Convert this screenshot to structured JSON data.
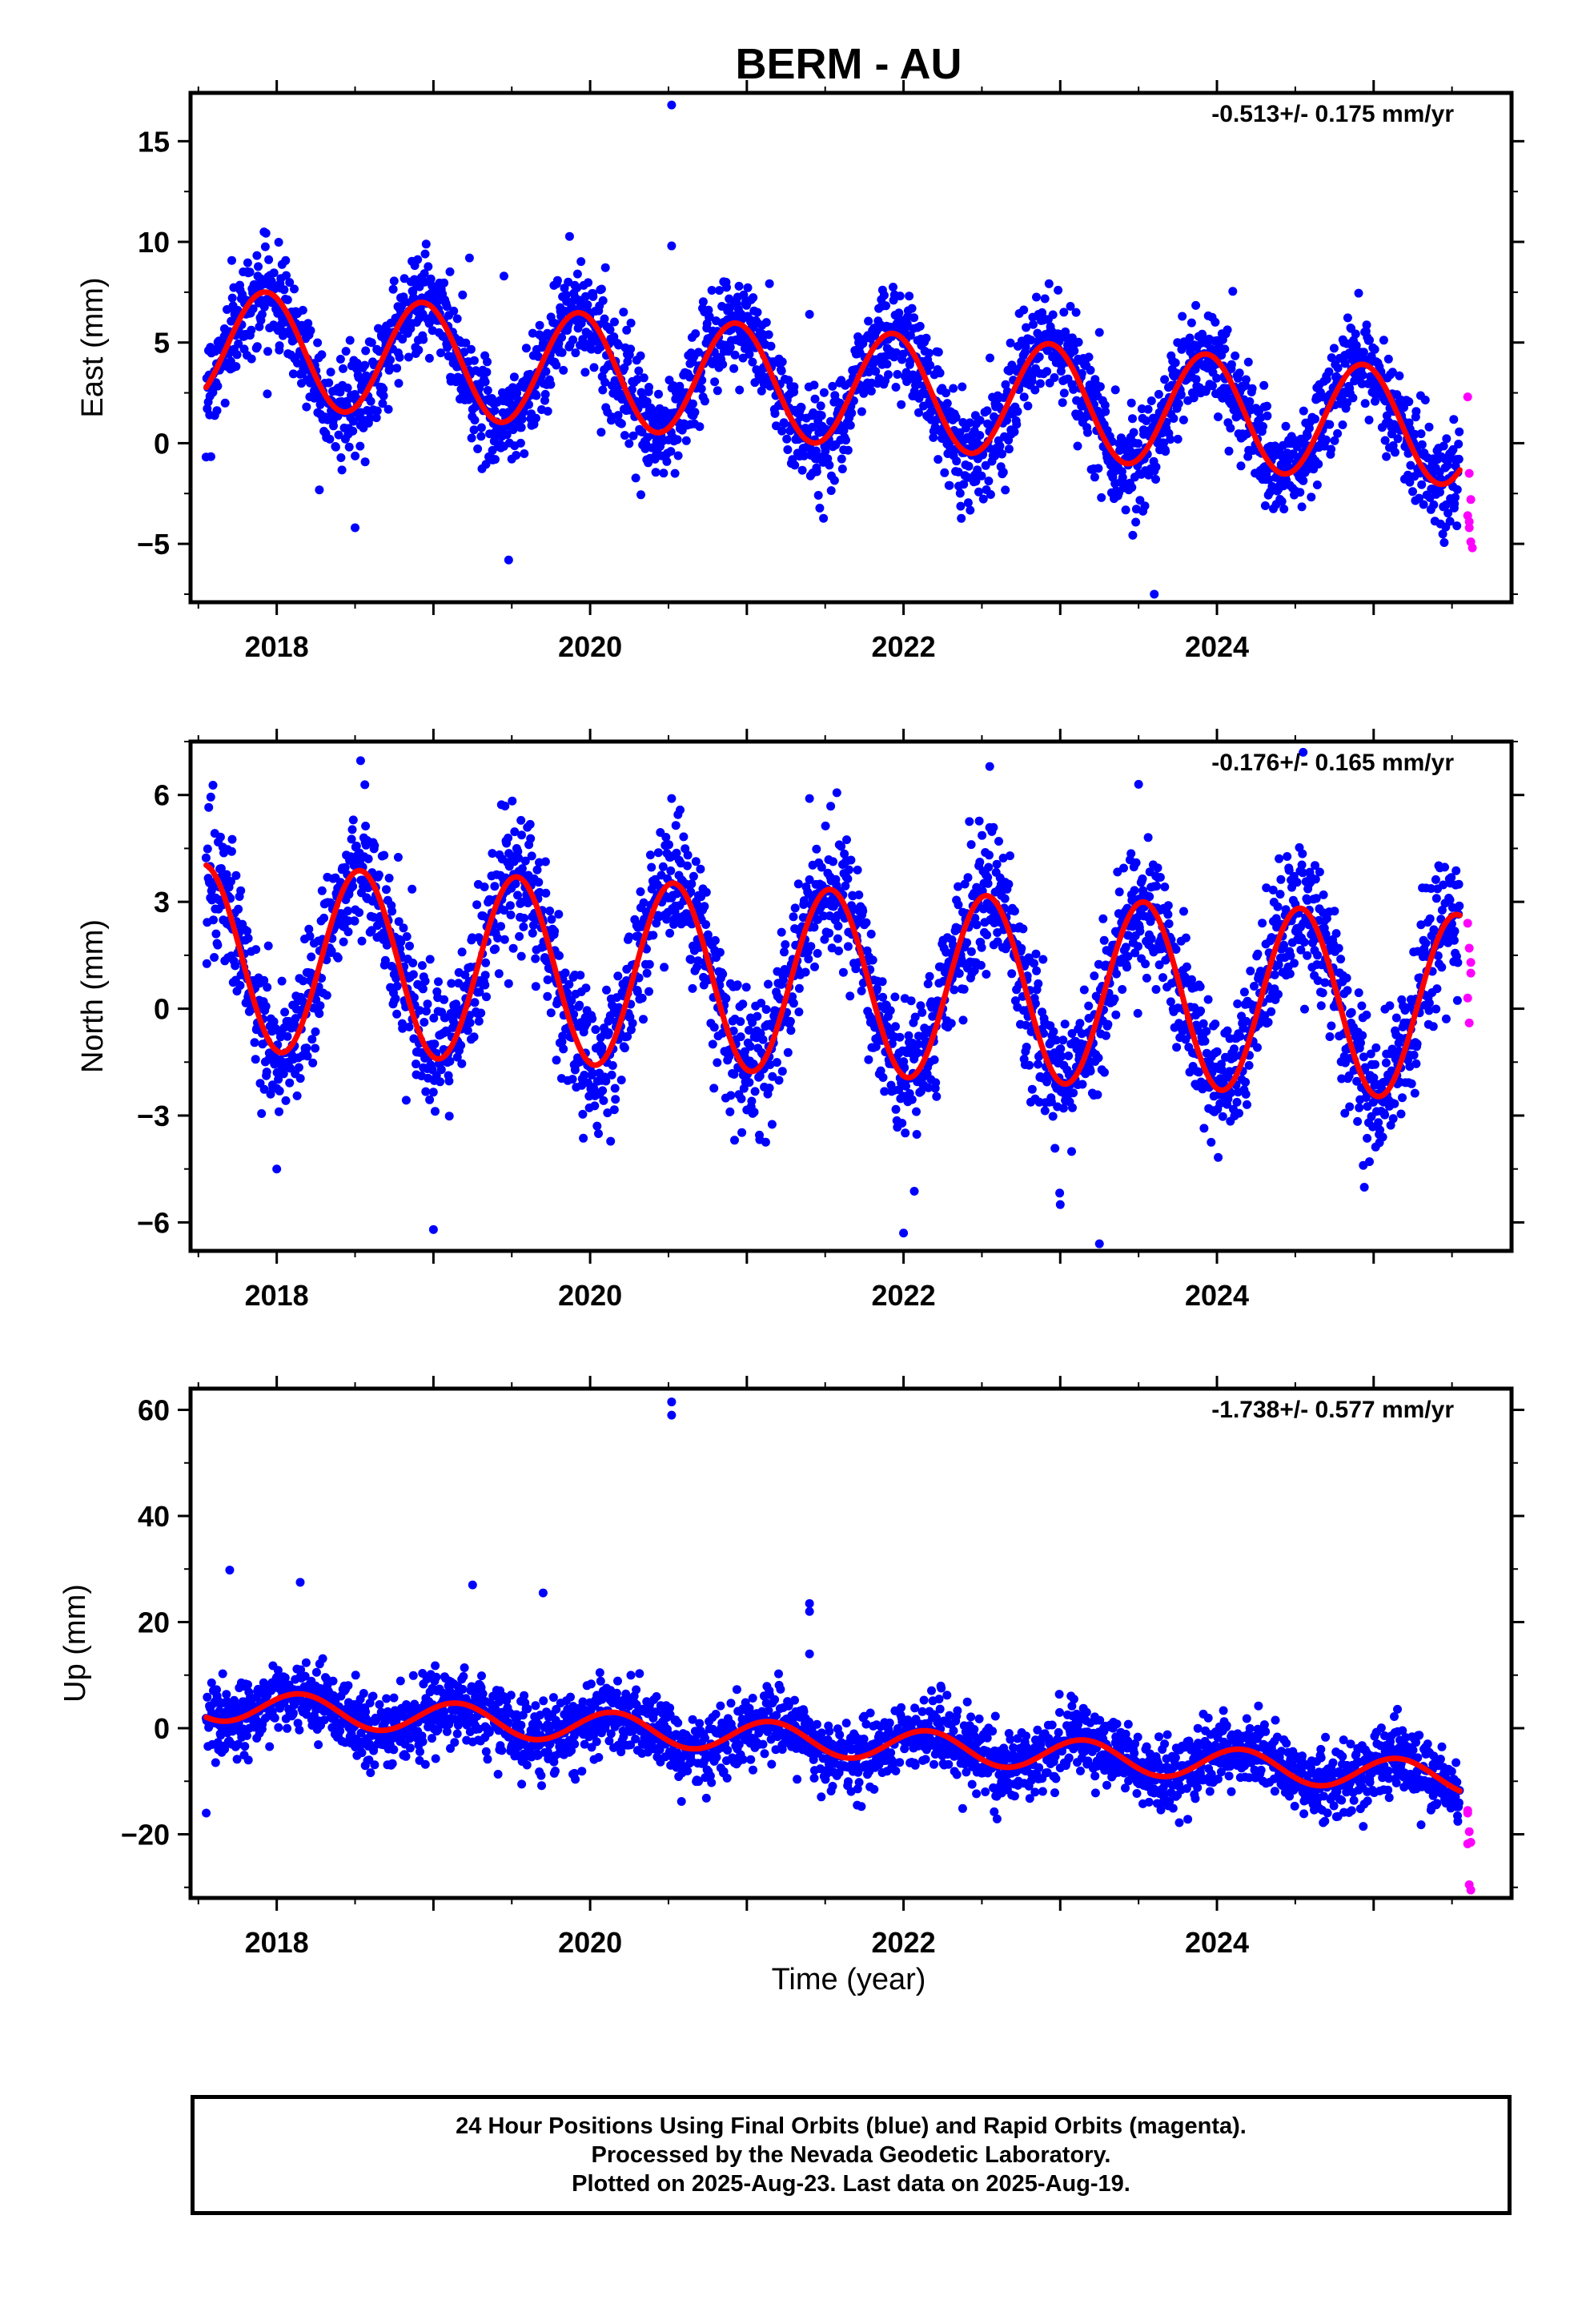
{
  "title": "BERM - AU",
  "xlabel": "Time (year)",
  "caption": {
    "line1": "24 Hour Positions Using Final Orbits (blue) and Rapid Orbits (magenta).",
    "line2": "Processed by the Nevada Geodetic Laboratory.",
    "line3": "Plotted on 2025-Aug-23. Last data on 2025-Aug-19."
  },
  "colors": {
    "final": "#0000ff",
    "rapid": "#ff00ff",
    "fit": "#ff0000"
  },
  "chart_data": [
    {
      "type": "scatter",
      "id": "east",
      "ylabel": "East (mm)",
      "rate": "-0.513+/- 0.175 mm/yr",
      "xlim": [
        2017.45,
        2025.88
      ],
      "ylim": [
        -7.9,
        17.4
      ],
      "yticks": [
        -5,
        0,
        5,
        10,
        15
      ],
      "ytick_labels": [
        "−5",
        "0",
        "5",
        "10",
        "15"
      ],
      "xticks": [
        2018,
        2020,
        2022,
        2024
      ],
      "xtick_labels": [
        "2018",
        "2020",
        "2022",
        "2024"
      ],
      "x_range": [
        2017.55,
        2025.55
      ],
      "fit": {
        "mean": 4.85,
        "trend": -0.513,
        "t0": 2017.55,
        "amp": 2.85,
        "phase_peak": 0.93
      },
      "noise": 1.25,
      "outliers": [
        [
          2020.52,
          16.8
        ],
        [
          2020.52,
          9.8
        ],
        [
          2019.23,
          9.2
        ],
        [
          2019.45,
          8.3
        ],
        [
          2020.95,
          7.8
        ],
        [
          2021.4,
          6.4
        ],
        [
          2023.25,
          5.5
        ],
        [
          2023.6,
          -7.5
        ],
        [
          2019.48,
          -5.8
        ],
        [
          2018.5,
          -4.2
        ]
      ],
      "rapid": [
        [
          2025.6,
          2.3
        ],
        [
          2025.61,
          -1.5
        ],
        [
          2025.62,
          -2.8
        ],
        [
          2025.6,
          -3.6
        ],
        [
          2025.61,
          -4.2
        ],
        [
          2025.62,
          -4.9
        ],
        [
          2025.63,
          -5.2
        ],
        [
          2025.61,
          -3.9
        ]
      ]
    },
    {
      "type": "scatter",
      "id": "north",
      "ylabel": "North (mm)",
      "rate": "-0.176+/- 0.165 mm/yr",
      "xlim": [
        2017.45,
        2025.88
      ],
      "ylim": [
        -6.8,
        7.5
      ],
      "yticks": [
        -6,
        -3,
        0,
        3,
        6
      ],
      "ytick_labels": [
        "−6",
        "−3",
        "0",
        "3",
        "6"
      ],
      "xticks": [
        2018,
        2020,
        2022,
        2024
      ],
      "xtick_labels": [
        "2018",
        "2020",
        "2022",
        "2024"
      ],
      "x_range": [
        2017.55,
        2025.55
      ],
      "fit": {
        "mean": 1.45,
        "trend": -0.176,
        "t0": 2017.55,
        "amp": 2.6,
        "phase_peak": 0.53
      },
      "noise": 0.95,
      "outliers": [
        [
          2020.52,
          5.9
        ],
        [
          2021.4,
          5.9
        ],
        [
          2019.0,
          -6.2
        ],
        [
          2022.0,
          -6.3
        ],
        [
          2023.25,
          -6.6
        ],
        [
          2023.0,
          -5.5
        ],
        [
          2018.0,
          -4.5
        ],
        [
          2024.55,
          7.2
        ],
        [
          2022.55,
          6.8
        ],
        [
          2023.5,
          6.3
        ]
      ],
      "rapid": [
        [
          2025.6,
          2.4
        ],
        [
          2025.61,
          1.7
        ],
        [
          2025.62,
          1.0
        ],
        [
          2025.6,
          0.3
        ],
        [
          2025.61,
          -0.4
        ],
        [
          2025.62,
          1.3
        ]
      ]
    },
    {
      "type": "scatter",
      "id": "up",
      "ylabel": "Up (mm)",
      "rate": "-1.738+/- 0.577 mm/yr",
      "xlim": [
        2017.45,
        2025.88
      ],
      "ylim": [
        -32,
        64
      ],
      "yticks": [
        -20,
        0,
        20,
        40,
        60
      ],
      "ytick_labels": [
        "−20",
        "0",
        "20",
        "40",
        "60"
      ],
      "xticks": [
        2018,
        2020,
        2022,
        2024
      ],
      "xtick_labels": [
        "2018",
        "2020",
        "2022",
        "2024"
      ],
      "x_range": [
        2017.55,
        2025.55
      ],
      "fit": {
        "mean": 4.5,
        "trend": -1.738,
        "t0": 2017.55,
        "amp": 3.0,
        "phase_peak": 0.15
      },
      "noise": 3.3,
      "outliers": [
        [
          2020.52,
          61.5
        ],
        [
          2020.52,
          59.0
        ],
        [
          2017.7,
          29.8
        ],
        [
          2018.15,
          27.5
        ],
        [
          2019.25,
          27.0
        ],
        [
          2019.7,
          25.5
        ],
        [
          2021.4,
          23.5
        ],
        [
          2021.4,
          22.0
        ],
        [
          2017.55,
          -16.0
        ],
        [
          2019.9,
          -8.5
        ],
        [
          2021.4,
          14.0
        ]
      ],
      "rapid": [
        [
          2025.6,
          -15.5
        ],
        [
          2025.61,
          -19.5
        ],
        [
          2025.62,
          -21.5
        ],
        [
          2025.6,
          -21.8
        ],
        [
          2025.61,
          -29.5
        ],
        [
          2025.62,
          -30.5
        ],
        [
          2025.6,
          -16.0
        ]
      ]
    }
  ]
}
